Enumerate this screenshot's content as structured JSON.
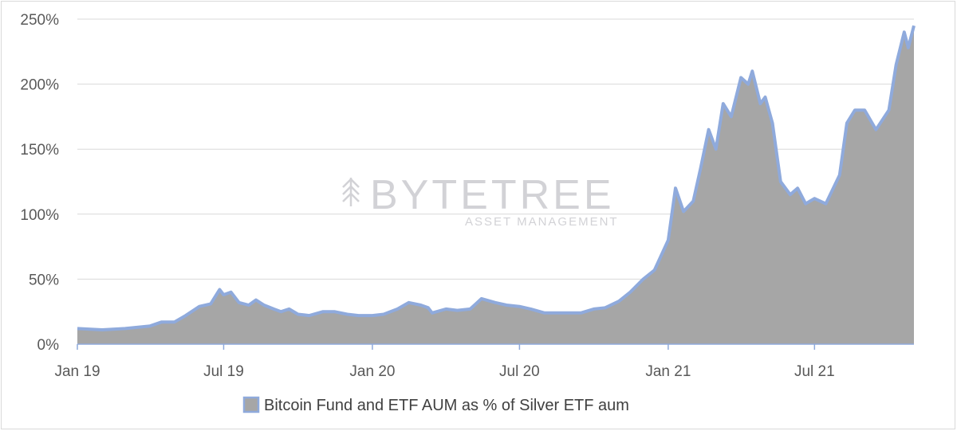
{
  "chart_data": {
    "type": "area",
    "title": "",
    "xlabel": "",
    "ylabel": "",
    "ylim": [
      0,
      250
    ],
    "y_ticks": [
      "0%",
      "50%",
      "100%",
      "150%",
      "200%",
      "250%"
    ],
    "y_tick_values": [
      0,
      50,
      100,
      150,
      200,
      250
    ],
    "x_ticks": [
      "Jan 19",
      "Jul 19",
      "Jan 20",
      "Jul 20",
      "Jan 21",
      "Jul 21"
    ],
    "x_tick_dates": [
      "2019-01-01",
      "2019-07-01",
      "2020-01-01",
      "2020-07-01",
      "2021-01-01",
      "2021-07-01"
    ],
    "grid": "horizontal",
    "legend_position": "bottom",
    "colors": {
      "fill": "#a6a6a6",
      "line": "#8faadc",
      "grid": "#d9d9d9",
      "axis": "#8faadc"
    },
    "series": [
      {
        "name": "Bitcoin Fund and ETF AUM as % of Silver ETF aum",
        "points": [
          [
            "2019-01-01",
            12
          ],
          [
            "2019-02-01",
            11
          ],
          [
            "2019-03-01",
            12
          ],
          [
            "2019-04-01",
            14
          ],
          [
            "2019-04-15",
            17
          ],
          [
            "2019-05-01",
            17
          ],
          [
            "2019-05-15",
            22
          ],
          [
            "2019-06-01",
            29
          ],
          [
            "2019-06-15",
            31
          ],
          [
            "2019-06-20",
            36
          ],
          [
            "2019-06-26",
            42
          ],
          [
            "2019-07-01",
            38
          ],
          [
            "2019-07-10",
            40
          ],
          [
            "2019-07-20",
            32
          ],
          [
            "2019-08-01",
            30
          ],
          [
            "2019-08-10",
            34
          ],
          [
            "2019-08-20",
            30
          ],
          [
            "2019-09-01",
            27
          ],
          [
            "2019-09-10",
            25
          ],
          [
            "2019-09-20",
            27
          ],
          [
            "2019-10-01",
            23
          ],
          [
            "2019-10-15",
            22
          ],
          [
            "2019-11-01",
            25
          ],
          [
            "2019-11-15",
            25
          ],
          [
            "2019-12-01",
            23
          ],
          [
            "2019-12-15",
            22
          ],
          [
            "2020-01-01",
            22
          ],
          [
            "2020-01-15",
            23
          ],
          [
            "2020-02-01",
            27
          ],
          [
            "2020-02-15",
            32
          ],
          [
            "2020-03-01",
            30
          ],
          [
            "2020-03-10",
            28
          ],
          [
            "2020-03-15",
            24
          ],
          [
            "2020-04-01",
            27
          ],
          [
            "2020-04-15",
            26
          ],
          [
            "2020-05-01",
            27
          ],
          [
            "2020-05-15",
            35
          ],
          [
            "2020-06-01",
            32
          ],
          [
            "2020-06-15",
            30
          ],
          [
            "2020-07-01",
            29
          ],
          [
            "2020-07-15",
            27
          ],
          [
            "2020-08-01",
            24
          ],
          [
            "2020-08-15",
            24
          ],
          [
            "2020-09-01",
            24
          ],
          [
            "2020-09-15",
            24
          ],
          [
            "2020-10-01",
            27
          ],
          [
            "2020-10-15",
            28
          ],
          [
            "2020-11-01",
            33
          ],
          [
            "2020-11-15",
            40
          ],
          [
            "2020-12-01",
            50
          ],
          [
            "2020-12-15",
            57
          ],
          [
            "2021-01-01",
            80
          ],
          [
            "2021-01-10",
            120
          ],
          [
            "2021-01-20",
            102
          ],
          [
            "2021-02-01",
            110
          ],
          [
            "2021-02-10",
            135
          ],
          [
            "2021-02-20",
            165
          ],
          [
            "2021-03-01",
            150
          ],
          [
            "2021-03-10",
            185
          ],
          [
            "2021-03-20",
            175
          ],
          [
            "2021-04-01",
            205
          ],
          [
            "2021-04-10",
            200
          ],
          [
            "2021-04-15",
            210
          ],
          [
            "2021-04-25",
            185
          ],
          [
            "2021-05-01",
            190
          ],
          [
            "2021-05-10",
            170
          ],
          [
            "2021-05-20",
            125
          ],
          [
            "2021-06-01",
            115
          ],
          [
            "2021-06-10",
            120
          ],
          [
            "2021-06-20",
            108
          ],
          [
            "2021-07-01",
            112
          ],
          [
            "2021-07-15",
            108
          ],
          [
            "2021-08-01",
            130
          ],
          [
            "2021-08-10",
            170
          ],
          [
            "2021-08-20",
            180
          ],
          [
            "2021-09-01",
            180
          ],
          [
            "2021-09-15",
            165
          ],
          [
            "2021-10-01",
            180
          ],
          [
            "2021-10-10",
            215
          ],
          [
            "2021-10-20",
            240
          ],
          [
            "2021-10-25",
            228
          ],
          [
            "2021-11-01",
            245
          ]
        ]
      }
    ]
  },
  "watermark": {
    "brand": "BYTETREE",
    "subtitle": "ASSET MANAGEMENT",
    "icon": "tree-icon"
  }
}
